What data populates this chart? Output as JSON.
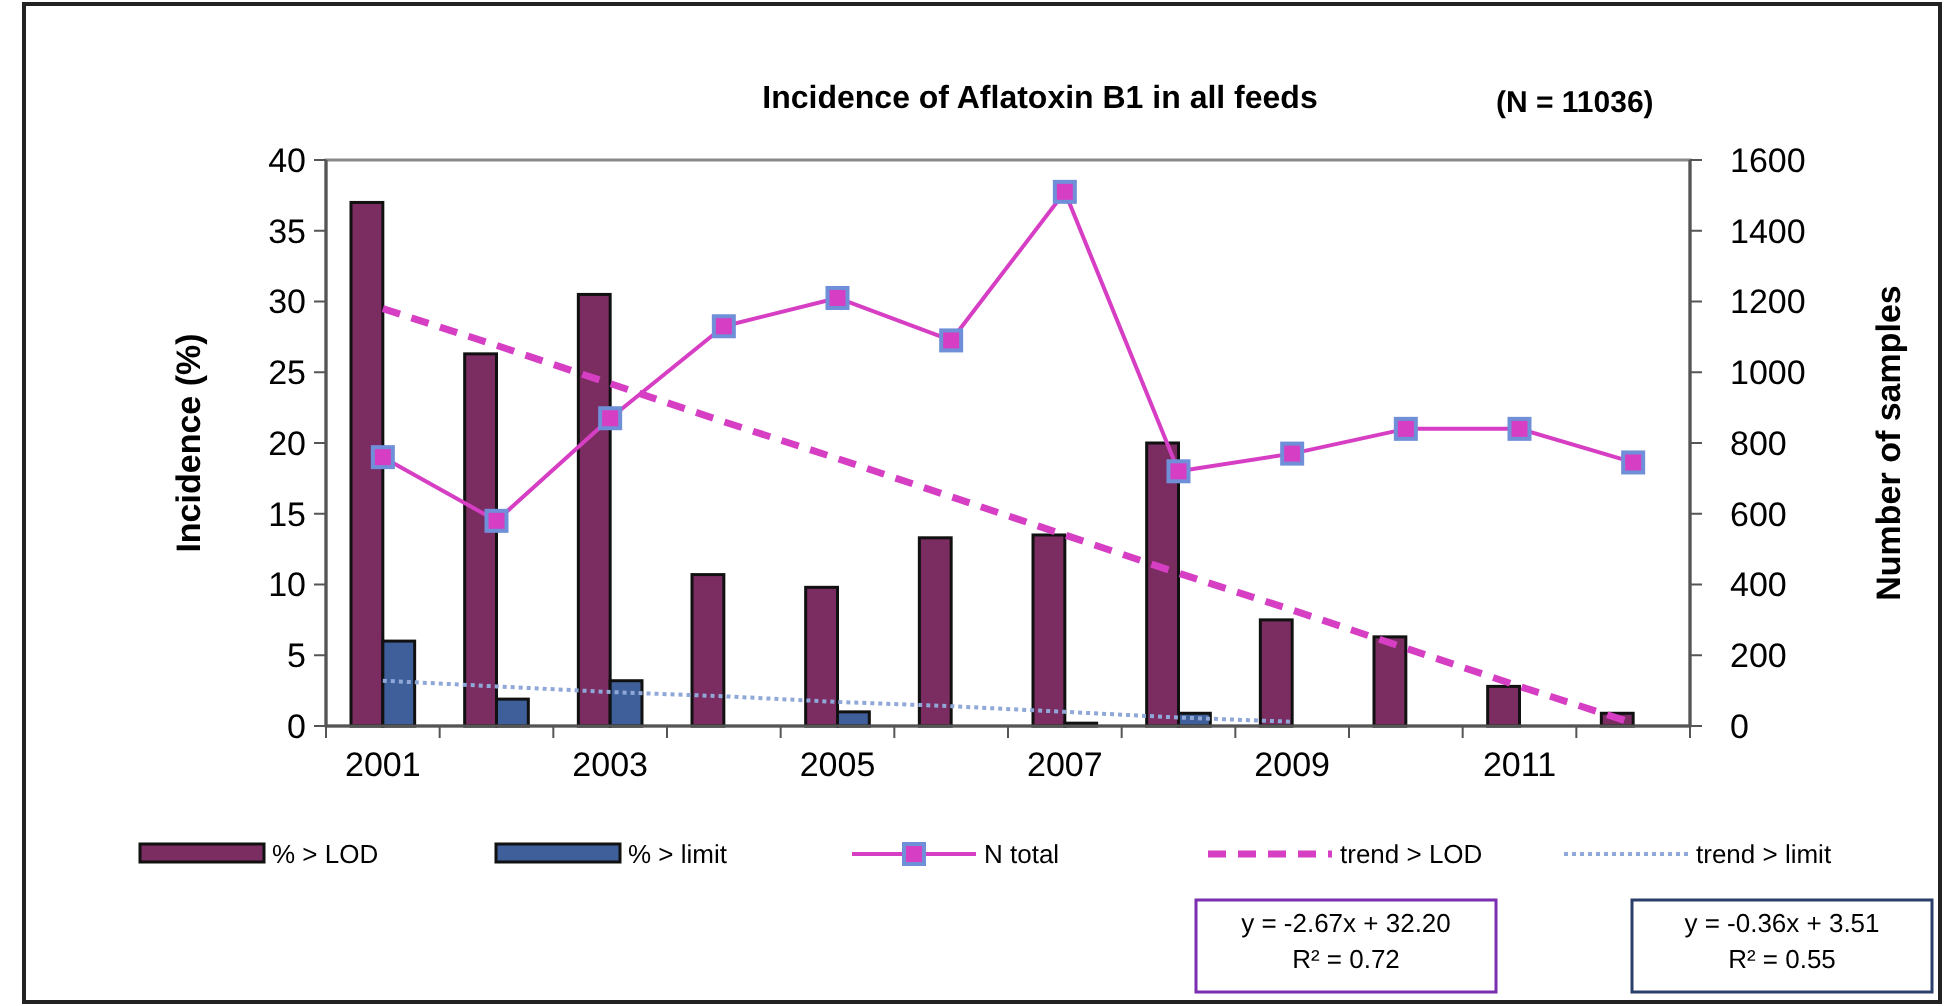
{
  "chart_data": {
    "type": "bar",
    "title": "Incidence of Aflatoxin B1 in all feeds",
    "subtitle": "(N = 11036)",
    "ylabel": "Incidence (%)",
    "y2label": "Number of samples",
    "categories": [
      "2001",
      null,
      "2003",
      null,
      "2005",
      null,
      "2007",
      null,
      "2009",
      null,
      "2011",
      null
    ],
    "series": [
      {
        "name": "% > LOD",
        "color": "#7b2d62",
        "values": [
          37,
          26.3,
          30.5,
          10.7,
          9.8,
          13.3,
          13.5,
          20,
          7.5,
          6.3,
          2.8,
          0.9
        ]
      },
      {
        "name": "% > limit",
        "color": "#3f5f9a",
        "values": [
          6,
          1.9,
          3.2,
          null,
          1,
          null,
          0.2,
          0.9,
          0,
          0,
          null,
          0
        ]
      },
      {
        "name": "N total",
        "type": "line",
        "axis": "y2",
        "color": "#d63fc4",
        "marker": "square",
        "line_style": "solid",
        "values": [
          760,
          580,
          870,
          1130,
          1210,
          1090,
          1510,
          720,
          770,
          840,
          840,
          745
        ]
      },
      {
        "name": "trend > LOD",
        "type": "line",
        "color": "#d63fc4",
        "marker": "none",
        "line_style": "dashed",
        "values": [
          29.5,
          26.9,
          24.2,
          21.5,
          18.9,
          16.2,
          13.5,
          10.8,
          8.2,
          5.5,
          2.8,
          0.2
        ]
      },
      {
        "name": "trend > limit",
        "type": "line",
        "color": "#8fa8d8",
        "marker": "none",
        "line_style": "dotted",
        "values": [
          3.2,
          2.8,
          2.4,
          2.1,
          1.7,
          1.4,
          1.0,
          0.6,
          0.3,
          null,
          null,
          null
        ]
      }
    ],
    "ylim": [
      0,
      40
    ],
    "yticks": [
      0,
      5,
      10,
      15,
      20,
      25,
      30,
      35,
      40
    ],
    "y2lim": [
      0,
      1600
    ],
    "y2ticks": [
      0,
      200,
      400,
      600,
      800,
      1000,
      1200,
      1400,
      1600
    ],
    "grid": false,
    "legend": "bottom",
    "annotations": [
      "y = -2.67x + 32.20\nR² = 0.72",
      "y = -0.36x + 3.51\nR² = 0.55"
    ]
  }
}
